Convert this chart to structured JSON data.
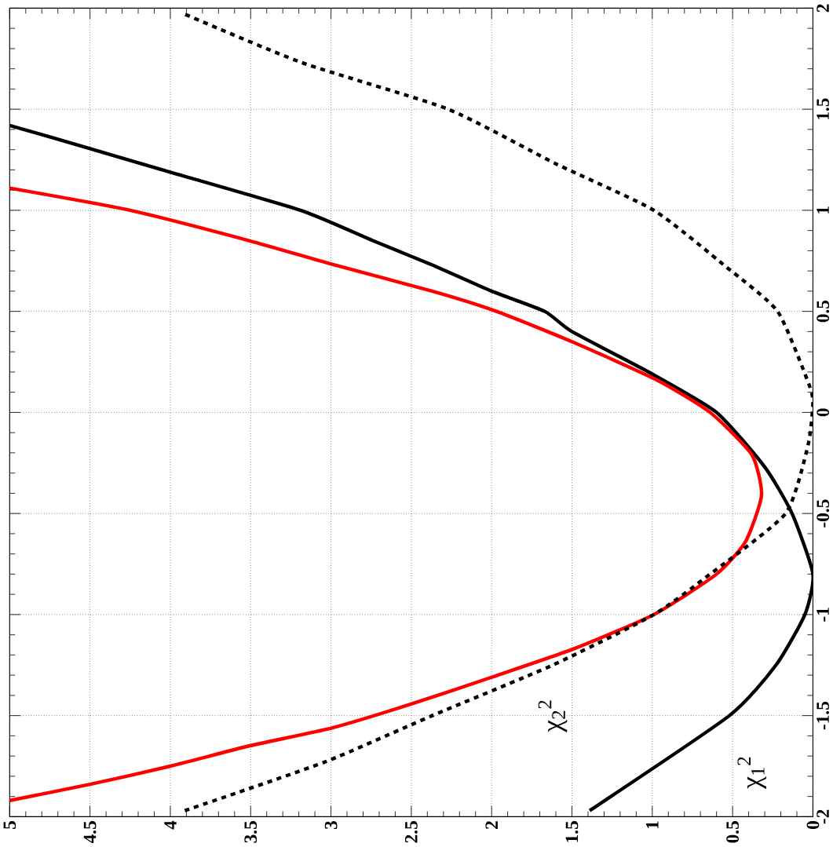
{
  "chart_data": {
    "type": "line",
    "xlim": [
      5,
      0
    ],
    "ylim": [
      -2,
      2
    ],
    "xticks": [
      0,
      0.5,
      1,
      1.5,
      2,
      2.5,
      3,
      3.5,
      4,
      4.5,
      5
    ],
    "yticks": [
      -2,
      -1.5,
      -1,
      -0.5,
      0,
      0.5,
      1,
      1.5,
      2
    ],
    "grid": true,
    "marker": "none",
    "series": [
      {
        "color": "#000000",
        "line_style": "solid",
        "values": [
          -1.97,
          -1.5,
          -1.25,
          -1.0,
          -0.8,
          -0.5,
          -0.27,
          0,
          0.19,
          0.4,
          0.5,
          0.6,
          0.73,
          0.85,
          1.0,
          1.2,
          1.31,
          1.42
        ],
        "x": [
          1.39,
          0.52,
          0.23,
          0.05,
          0,
          0.13,
          0.3,
          0.6,
          1.0,
          1.5,
          1.67,
          2.0,
          2.37,
          2.74,
          3.19,
          4.05,
          4.52,
          5.0
        ]
      },
      {
        "color": "#ff0000",
        "line_style": "solid",
        "values": [
          -1.92,
          -1.84,
          -1.75,
          -1.65,
          -1.56,
          -1.44,
          -1.31,
          -1.17,
          -1.0,
          -0.8,
          -0.64,
          -0.41,
          -0.21,
          0,
          0.16,
          0.35,
          0.5,
          0.6,
          0.73,
          0.85,
          1.0,
          1.11
        ],
        "x": [
          5.0,
          4.5,
          4.0,
          3.51,
          2.99,
          2.49,
          2.0,
          1.49,
          0.99,
          0.6,
          0.42,
          0.32,
          0.38,
          0.64,
          0.97,
          1.5,
          1.97,
          2.37,
          2.98,
          3.51,
          4.25,
          5.0
        ]
      },
      {
        "color": "#000000",
        "line_style": "dotted",
        "values": [
          -1.97,
          -1.73,
          -1.5,
          -1.25,
          -1.0,
          -0.8,
          -0.5,
          -0.16,
          0.05,
          0.15,
          0.5,
          0.72,
          1.0,
          1.23,
          1.5,
          1.73,
          1.97
        ],
        "x": [
          3.91,
          3.04,
          2.37,
          1.62,
          0.99,
          0.64,
          0.17,
          0.03,
          0,
          0.03,
          0.22,
          0.54,
          0.99,
          1.6,
          2.27,
          3.18,
          3.91
        ]
      }
    ],
    "annotations": [
      "χ$_{2}$$^{2}$",
      "χ$_{1}$$^{2}$"
    ]
  }
}
